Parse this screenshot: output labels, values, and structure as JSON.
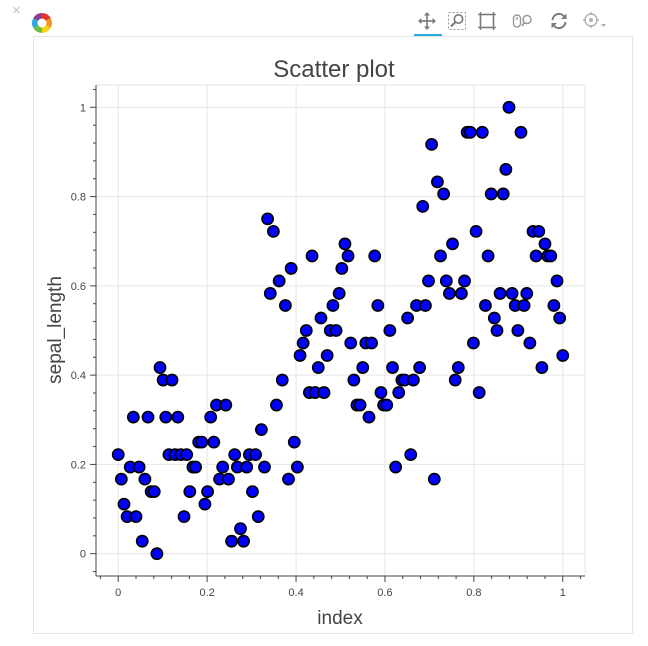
{
  "toolbar": {
    "close_icon": "×",
    "logo": "bokeh-logo-icon",
    "tools": [
      "pan-icon",
      "box-zoom-icon",
      "box-select-icon",
      "wheel-zoom-icon",
      "reset-icon",
      "hover-icon"
    ]
  },
  "colors": {
    "marker_fill": "#0000ff",
    "marker_line": "#000000",
    "grid": "#e5e5e5",
    "axis": "#444444",
    "active_tool": "#26aae1"
  },
  "chart_data": {
    "type": "scatter",
    "title": "Scatter plot",
    "xlabel": "index",
    "ylabel": "sepal_length",
    "xlim": [
      -0.05,
      1.05
    ],
    "ylim": [
      -0.05,
      1.05
    ],
    "xticks": [
      0,
      0.2,
      0.4,
      0.6,
      0.8,
      1
    ],
    "yticks": [
      0,
      0.2,
      0.4,
      0.6,
      0.8,
      1
    ],
    "xtick_labels": [
      "0",
      "0.2",
      "0.4",
      "0.6",
      "0.8",
      "1"
    ],
    "ytick_labels": [
      "0",
      "0.2",
      "0.4",
      "0.6",
      "0.8",
      "1"
    ],
    "grid": true,
    "points": [
      [
        0.0,
        0.222
      ],
      [
        0.007,
        0.167
      ],
      [
        0.013,
        0.111
      ],
      [
        0.02,
        0.083
      ],
      [
        0.027,
        0.194
      ],
      [
        0.034,
        0.306
      ],
      [
        0.04,
        0.083
      ],
      [
        0.047,
        0.194
      ],
      [
        0.054,
        0.028
      ],
      [
        0.06,
        0.167
      ],
      [
        0.067,
        0.306
      ],
      [
        0.074,
        0.139
      ],
      [
        0.081,
        0.139
      ],
      [
        0.087,
        0.0
      ],
      [
        0.094,
        0.417
      ],
      [
        0.101,
        0.389
      ],
      [
        0.107,
        0.306
      ],
      [
        0.114,
        0.222
      ],
      [
        0.121,
        0.389
      ],
      [
        0.128,
        0.222
      ],
      [
        0.134,
        0.306
      ],
      [
        0.141,
        0.222
      ],
      [
        0.148,
        0.083
      ],
      [
        0.154,
        0.222
      ],
      [
        0.161,
        0.139
      ],
      [
        0.168,
        0.194
      ],
      [
        0.174,
        0.194
      ],
      [
        0.181,
        0.25
      ],
      [
        0.188,
        0.25
      ],
      [
        0.195,
        0.111
      ],
      [
        0.201,
        0.139
      ],
      [
        0.208,
        0.306
      ],
      [
        0.215,
        0.25
      ],
      [
        0.221,
        0.333
      ],
      [
        0.228,
        0.167
      ],
      [
        0.235,
        0.194
      ],
      [
        0.242,
        0.333
      ],
      [
        0.248,
        0.167
      ],
      [
        0.255,
        0.028
      ],
      [
        0.262,
        0.222
      ],
      [
        0.268,
        0.194
      ],
      [
        0.275,
        0.056
      ],
      [
        0.282,
        0.028
      ],
      [
        0.289,
        0.194
      ],
      [
        0.295,
        0.222
      ],
      [
        0.302,
        0.139
      ],
      [
        0.309,
        0.222
      ],
      [
        0.315,
        0.083
      ],
      [
        0.322,
        0.278
      ],
      [
        0.329,
        0.194
      ],
      [
        0.336,
        0.75
      ],
      [
        0.342,
        0.583
      ],
      [
        0.349,
        0.722
      ],
      [
        0.356,
        0.333
      ],
      [
        0.362,
        0.611
      ],
      [
        0.369,
        0.389
      ],
      [
        0.376,
        0.556
      ],
      [
        0.383,
        0.167
      ],
      [
        0.389,
        0.639
      ],
      [
        0.396,
        0.25
      ],
      [
        0.403,
        0.194
      ],
      [
        0.409,
        0.444
      ],
      [
        0.416,
        0.472
      ],
      [
        0.423,
        0.5
      ],
      [
        0.43,
        0.361
      ],
      [
        0.436,
        0.667
      ],
      [
        0.443,
        0.361
      ],
      [
        0.45,
        0.417
      ],
      [
        0.456,
        0.528
      ],
      [
        0.463,
        0.361
      ],
      [
        0.47,
        0.444
      ],
      [
        0.477,
        0.5
      ],
      [
        0.483,
        0.556
      ],
      [
        0.49,
        0.5
      ],
      [
        0.497,
        0.583
      ],
      [
        0.503,
        0.639
      ],
      [
        0.51,
        0.694
      ],
      [
        0.517,
        0.667
      ],
      [
        0.523,
        0.472
      ],
      [
        0.53,
        0.389
      ],
      [
        0.537,
        0.333
      ],
      [
        0.544,
        0.333
      ],
      [
        0.55,
        0.417
      ],
      [
        0.557,
        0.472
      ],
      [
        0.564,
        0.306
      ],
      [
        0.57,
        0.472
      ],
      [
        0.577,
        0.667
      ],
      [
        0.584,
        0.556
      ],
      [
        0.591,
        0.361
      ],
      [
        0.597,
        0.333
      ],
      [
        0.604,
        0.333
      ],
      [
        0.611,
        0.5
      ],
      [
        0.617,
        0.417
      ],
      [
        0.624,
        0.194
      ],
      [
        0.631,
        0.361
      ],
      [
        0.638,
        0.389
      ],
      [
        0.644,
        0.389
      ],
      [
        0.651,
        0.528
      ],
      [
        0.658,
        0.222
      ],
      [
        0.664,
        0.389
      ],
      [
        0.671,
        0.556
      ],
      [
        0.678,
        0.417
      ],
      [
        0.685,
        0.778
      ],
      [
        0.691,
        0.556
      ],
      [
        0.698,
        0.611
      ],
      [
        0.705,
        0.917
      ],
      [
        0.711,
        0.167
      ],
      [
        0.718,
        0.833
      ],
      [
        0.725,
        0.667
      ],
      [
        0.732,
        0.806
      ],
      [
        0.738,
        0.611
      ],
      [
        0.745,
        0.583
      ],
      [
        0.752,
        0.694
      ],
      [
        0.758,
        0.389
      ],
      [
        0.765,
        0.417
      ],
      [
        0.772,
        0.583
      ],
      [
        0.779,
        0.611
      ],
      [
        0.785,
        0.944
      ],
      [
        0.792,
        0.944
      ],
      [
        0.799,
        0.472
      ],
      [
        0.805,
        0.722
      ],
      [
        0.812,
        0.361
      ],
      [
        0.819,
        0.944
      ],
      [
        0.826,
        0.556
      ],
      [
        0.832,
        0.667
      ],
      [
        0.839,
        0.806
      ],
      [
        0.846,
        0.528
      ],
      [
        0.852,
        0.5
      ],
      [
        0.859,
        0.583
      ],
      [
        0.866,
        0.806
      ],
      [
        0.872,
        0.861
      ],
      [
        0.879,
        1.0
      ],
      [
        0.886,
        0.583
      ],
      [
        0.893,
        0.556
      ],
      [
        0.899,
        0.5
      ],
      [
        0.906,
        0.944
      ],
      [
        0.913,
        0.556
      ],
      [
        0.919,
        0.583
      ],
      [
        0.926,
        0.472
      ],
      [
        0.933,
        0.722
      ],
      [
        0.94,
        0.667
      ],
      [
        0.946,
        0.722
      ],
      [
        0.953,
        0.417
      ],
      [
        0.96,
        0.694
      ],
      [
        0.966,
        0.667
      ],
      [
        0.973,
        0.667
      ],
      [
        0.98,
        0.556
      ],
      [
        0.987,
        0.611
      ],
      [
        0.993,
        0.528
      ],
      [
        1.0,
        0.444
      ]
    ]
  }
}
